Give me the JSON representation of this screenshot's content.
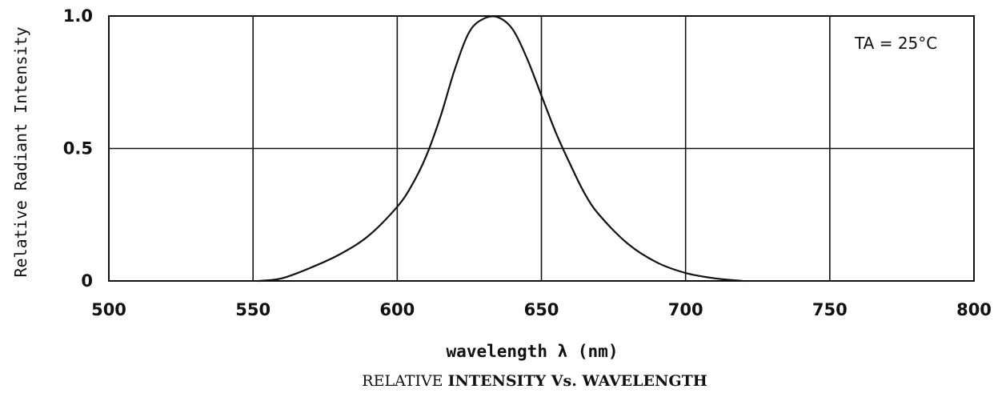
{
  "chart_data": {
    "type": "line",
    "title": "RELATIVE INTENSITY Vs. WAVELENGTH",
    "title_parts": [
      "RELATIVE ",
      "INTENSITY",
      " Vs. ",
      "WAVELENGTH"
    ],
    "xlabel": "wavelength λ (nm)",
    "ylabel": "Relative Radiant Intensity",
    "annotation": "TA = 25°C",
    "xlim": [
      500,
      800
    ],
    "ylim": [
      0,
      1.0
    ],
    "x_ticks": [
      500,
      550,
      600,
      650,
      700,
      750,
      800
    ],
    "x_tick_labels": [
      "500",
      "550",
      "600",
      "650",
      "700",
      "750",
      "800"
    ],
    "y_ticks": [
      0,
      0.5,
      1.0
    ],
    "y_tick_labels": [
      "0",
      "0.5",
      "1.0"
    ],
    "grid": true,
    "series": [
      {
        "x": [
          552,
          560,
          570,
          580,
          590,
          600,
          605,
          610,
          615,
          620,
          625,
          630,
          635,
          640,
          645,
          650,
          655,
          660,
          665,
          670,
          680,
          690,
          700,
          710,
          720
        ],
        "y": [
          0.0,
          0.01,
          0.05,
          0.1,
          0.17,
          0.28,
          0.36,
          0.47,
          0.62,
          0.8,
          0.94,
          0.99,
          0.995,
          0.95,
          0.84,
          0.7,
          0.56,
          0.44,
          0.33,
          0.25,
          0.14,
          0.07,
          0.03,
          0.01,
          0.0
        ]
      }
    ]
  }
}
